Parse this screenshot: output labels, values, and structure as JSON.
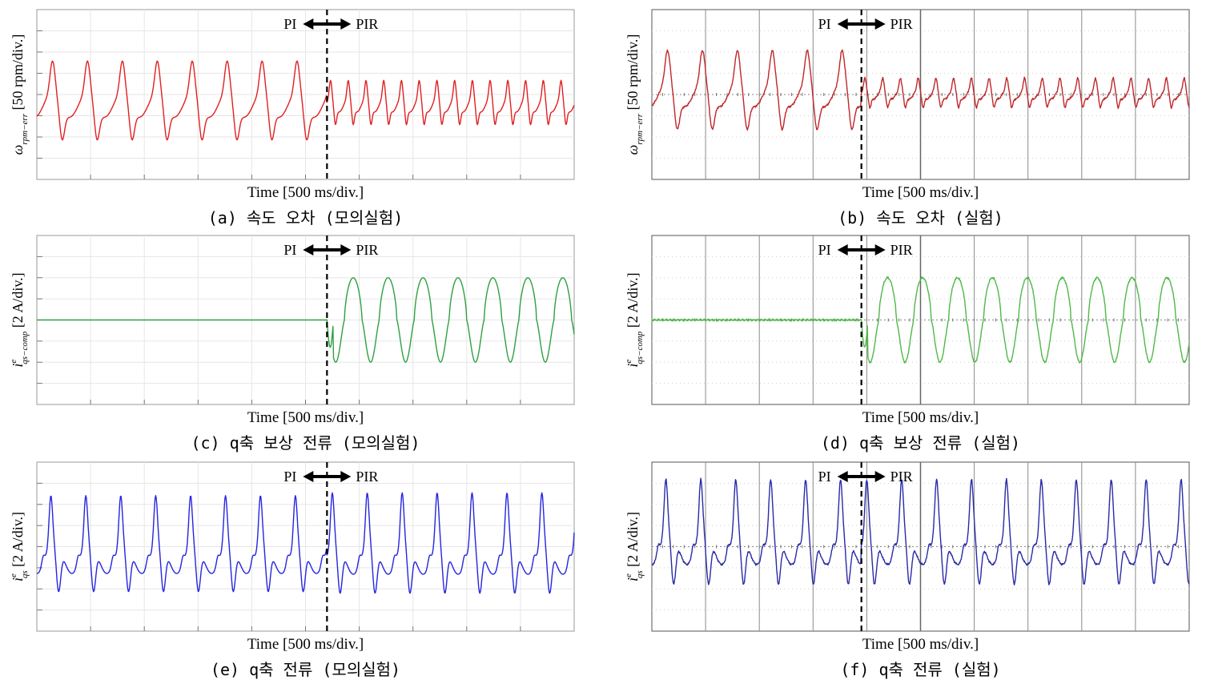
{
  "chart_data": [
    {
      "id": "a",
      "type": "line",
      "source": "simulation",
      "caption": "(a) 속도 오차 (모의실험)",
      "xlabel": "Time [500 ms/div.]",
      "ylabel": {
        "var": "ω",
        "sub": "rpm−err",
        "sup": "",
        "unit": "[50 rpm/div.]"
      },
      "switch": {
        "left": "PI",
        "right": "PIR",
        "t_div": 5.4
      },
      "x_div": 10,
      "y_div": 8,
      "color": "#e02020",
      "baseline_div": 4.5,
      "before": {
        "amp": 1.6,
        "period_div": 0.65
      },
      "after": {
        "amp": 0.9,
        "period_div": 0.33
      }
    },
    {
      "id": "b",
      "type": "line",
      "source": "experiment",
      "caption": "(b) 속도 오차 (실험)",
      "xlabel": "Time [500 ms/div.]",
      "ylabel": {
        "var": "ω",
        "sub": "rpm−err",
        "sup": "",
        "unit": "[50 rpm/div.]"
      },
      "switch": {
        "left": "PI",
        "right": "PIR",
        "t_div": 3.9
      },
      "x_div": 10,
      "y_div": 8,
      "color": "#c0262a",
      "baseline_div": 4.0,
      "before": {
        "amp": 1.6,
        "period_div": 0.65
      },
      "after": {
        "amp": 0.6,
        "period_div": 0.33
      }
    },
    {
      "id": "c",
      "type": "line",
      "source": "simulation",
      "caption": "(c) q축 보상 전류 (모의실험)",
      "xlabel": "Time [500 ms/div.]",
      "ylabel": {
        "var": "i",
        "sub": "qs−comp",
        "sup": "e",
        "unit": "[2 A/div.]"
      },
      "switch": {
        "left": "PI",
        "right": "PIR",
        "t_div": 5.4
      },
      "x_div": 10,
      "y_div": 8,
      "color": "#2ea040",
      "baseline_div": 4.0,
      "before": {
        "amp": 0,
        "period_div": 0.65
      },
      "after": {
        "amp": 2.0,
        "period_div": 0.65
      }
    },
    {
      "id": "d",
      "type": "line",
      "source": "experiment",
      "caption": "(d) q축 보상 전류 (실험)",
      "xlabel": "Time [500 ms/div.]",
      "ylabel": {
        "var": "i",
        "sub": "qs−comp",
        "sup": "e",
        "unit": "[2 A/div.]"
      },
      "switch": {
        "left": "PI",
        "right": "PIR",
        "t_div": 3.9
      },
      "x_div": 10,
      "y_div": 8,
      "color": "#50b848",
      "baseline_div": 4.0,
      "before": {
        "amp": 0,
        "period_div": 0.65
      },
      "after": {
        "amp": 2.0,
        "period_div": 0.65
      }
    },
    {
      "id": "e",
      "type": "line",
      "source": "simulation",
      "caption": "(e) q축 전류 (모의실험)",
      "xlabel": "Time [500 ms/div.]",
      "ylabel": {
        "var": "i",
        "sub": "qs",
        "sup": "e",
        "unit": "[2 A/div.]"
      },
      "switch": {
        "left": "PI",
        "right": "PIR",
        "t_div": 5.4
      },
      "x_div": 10,
      "y_div": 8,
      "color": "#2525e0",
      "baseline_div": 4.5,
      "before": {
        "amp": 2.2,
        "period_div": 0.65
      },
      "after": {
        "amp": 2.3,
        "period_div": 0.65
      }
    },
    {
      "id": "f",
      "type": "line",
      "source": "experiment",
      "caption": "(f) q축 전류 (실험)",
      "xlabel": "Time [500 ms/div.]",
      "ylabel": {
        "var": "i",
        "sub": "qs",
        "sup": "e",
        "unit": "[2 A/div.]"
      },
      "switch": {
        "left": "PI",
        "right": "PIR",
        "t_div": 3.9
      },
      "x_div": 10,
      "y_div": 8,
      "color": "#2a2aa8",
      "baseline_div": 4.0,
      "before": {
        "amp": 2.4,
        "period_div": 0.65
      },
      "after": {
        "amp": 2.4,
        "period_div": 0.65
      }
    }
  ]
}
